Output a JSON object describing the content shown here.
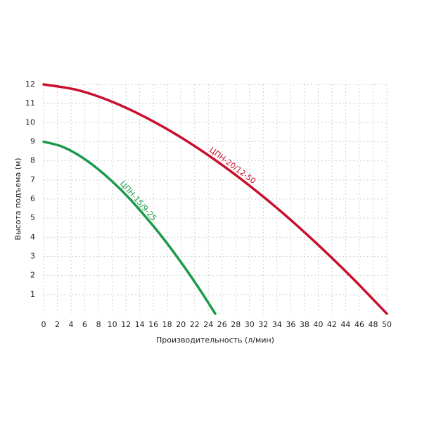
{
  "chart_data": {
    "type": "line",
    "x_label": "Производительность (л/мин)",
    "y_label": "Высота подъема (м)",
    "xlim": [
      0,
      50
    ],
    "ylim": [
      0,
      12
    ],
    "xticks": [
      0,
      2,
      4,
      6,
      8,
      10,
      12,
      14,
      16,
      18,
      20,
      22,
      24,
      26,
      28,
      30,
      32,
      34,
      36,
      38,
      40,
      42,
      44,
      46,
      48,
      50
    ],
    "yticks": [
      1,
      2,
      3,
      4,
      5,
      6,
      7,
      8,
      9,
      10,
      11,
      12
    ],
    "grid": true,
    "series": [
      {
        "name": "ЦПН-20/12-50",
        "color": "#c8102e",
        "x": [
          0,
          5,
          10,
          15,
          20,
          25,
          30,
          35,
          40,
          45,
          50
        ],
        "values": [
          12,
          11.7,
          11.09,
          10.25,
          9.23,
          8.04,
          6.7,
          5.22,
          3.6,
          1.86,
          0
        ]
      },
      {
        "name": "ЦПН-15/9-25",
        "color": "#1a9a4a",
        "x": [
          0,
          2.5,
          5,
          7.5,
          10,
          12.5,
          15,
          17.5,
          20,
          22.5,
          25
        ],
        "values": [
          9,
          8.77,
          8.32,
          7.69,
          6.92,
          6.03,
          5.01,
          3.91,
          2.7,
          1.4,
          0
        ]
      }
    ]
  }
}
